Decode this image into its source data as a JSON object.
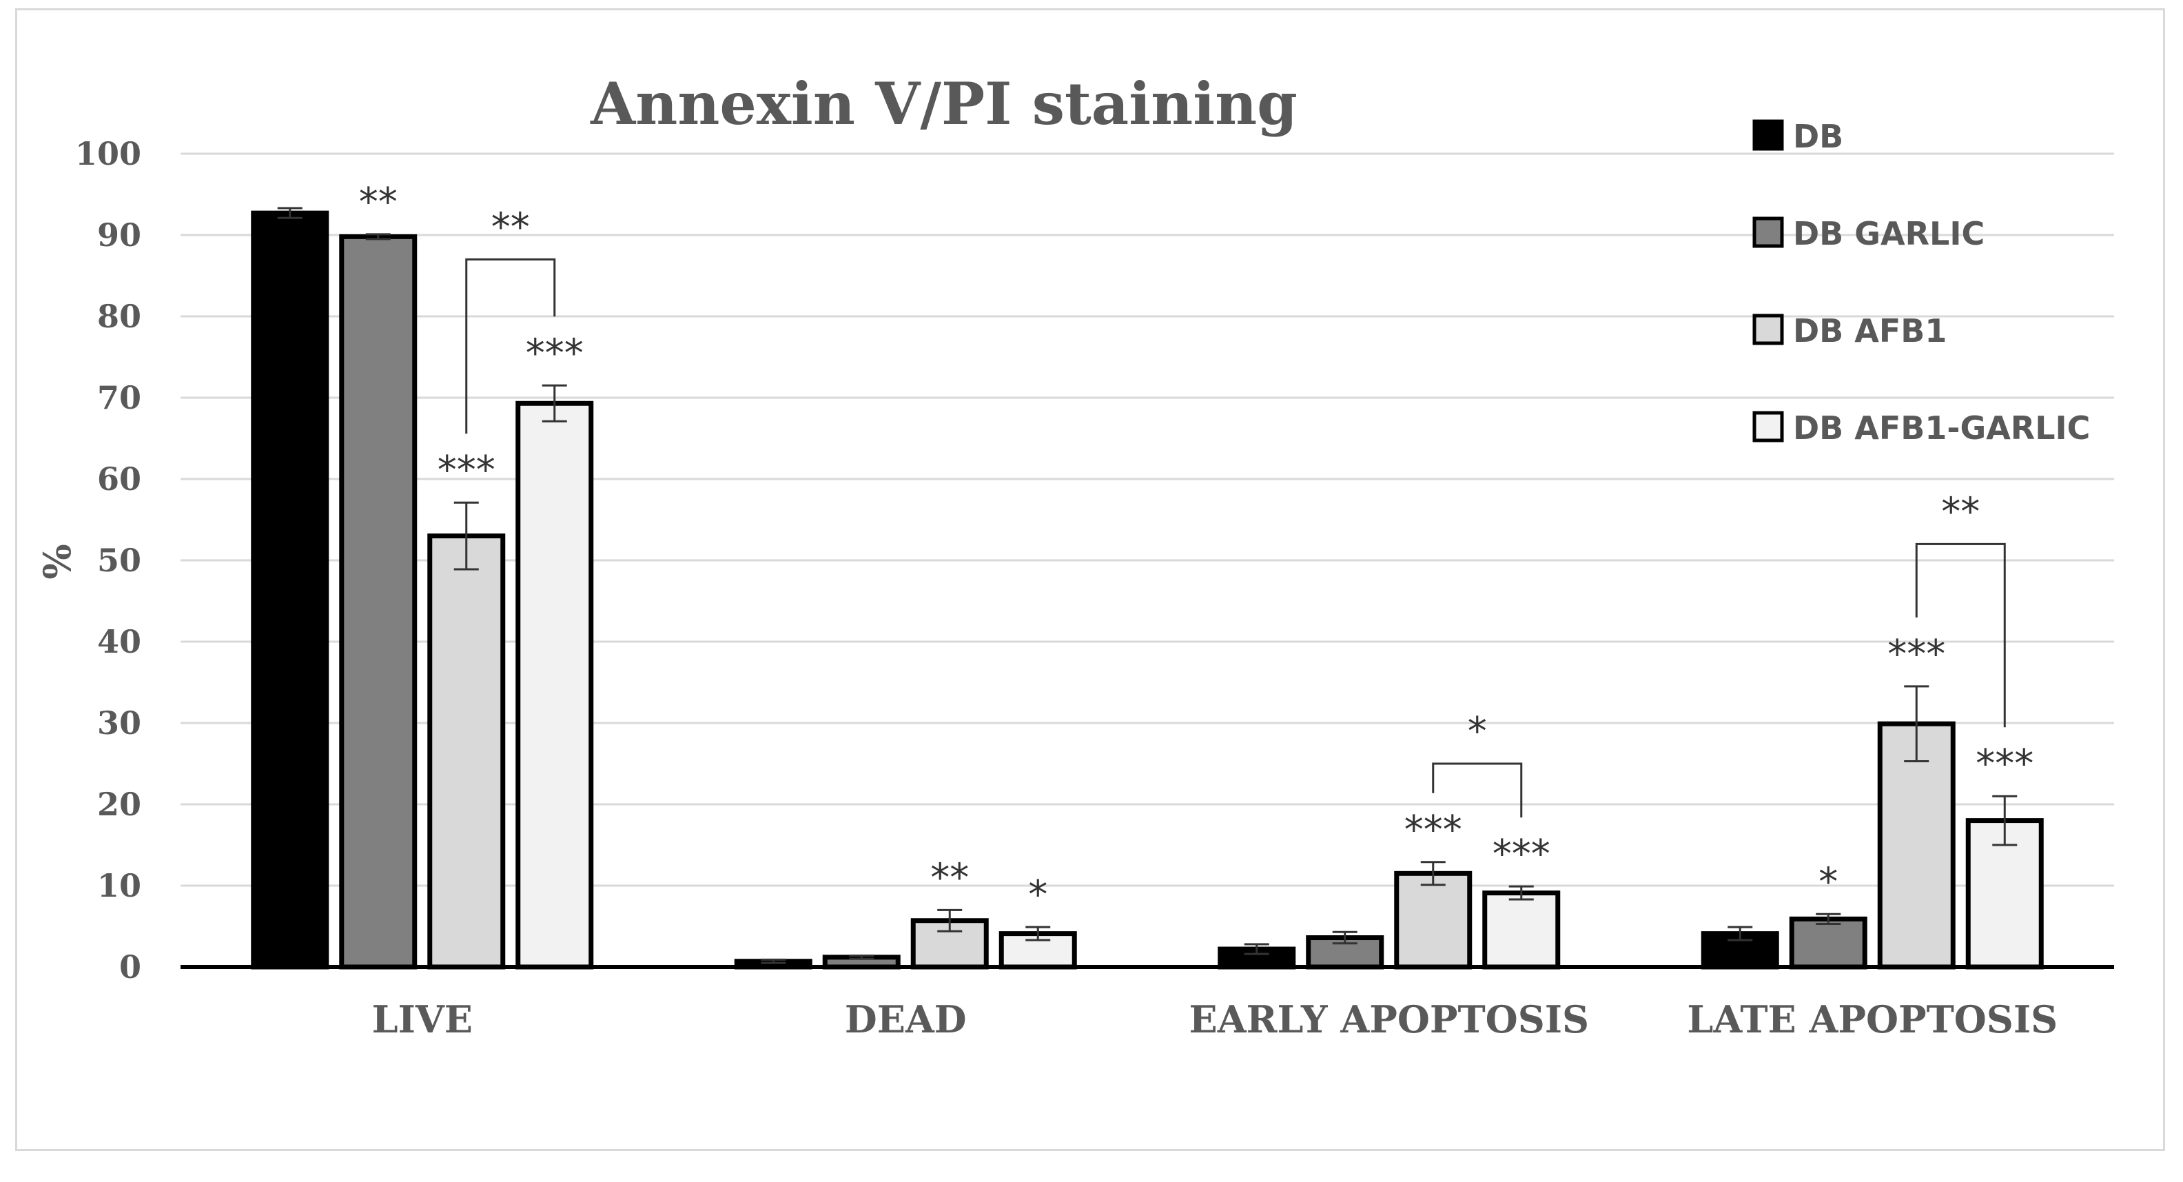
{
  "chart_data": {
    "type": "bar",
    "title": "Annexin V/PI staining",
    "xlabel": "",
    "ylabel": "%",
    "ylim": [
      0,
      100
    ],
    "yticks": [
      "0",
      "10",
      "20",
      "30",
      "40",
      "50",
      "60",
      "70",
      "80",
      "90",
      "100"
    ],
    "grid": true,
    "legend_position": "top-right",
    "categories": [
      "LIVE",
      "DEAD",
      "EARLY APOPTOSIS",
      "LATE APOPTOSIS"
    ],
    "series": [
      {
        "name": "DB",
        "color": "#000000",
        "values": [
          92.7,
          0.7,
          2.2,
          4.1
        ],
        "errors": [
          0.6,
          0.2,
          0.6,
          0.8
        ],
        "significance": [
          "",
          "",
          "",
          ""
        ]
      },
      {
        "name": "DB GARLIC",
        "color": "#808080",
        "values": [
          89.8,
          1.2,
          3.6,
          5.9
        ],
        "errors": [
          0.3,
          0.2,
          0.7,
          0.6
        ],
        "significance": [
          "**",
          "",
          "",
          "*"
        ]
      },
      {
        "name": "DB AFB1",
        "color": "#d9d9d9",
        "values": [
          53.0,
          5.7,
          11.5,
          29.9
        ],
        "errors": [
          4.1,
          1.3,
          1.4,
          4.6
        ],
        "significance": [
          "***",
          "**",
          "***",
          "***"
        ]
      },
      {
        "name": "DB AFB1-GARLIC",
        "color": "#f2f2f2",
        "values": [
          69.3,
          4.1,
          9.1,
          18.0
        ],
        "errors": [
          2.2,
          0.8,
          0.8,
          3.0
        ],
        "significance": [
          "***",
          "*",
          "***",
          "***"
        ]
      }
    ],
    "comparisons": [
      {
        "category": "LIVE",
        "between": [
          "DB AFB1",
          "DB AFB1-GARLIC"
        ],
        "label": "**",
        "bracket_y": 87
      },
      {
        "category": "EARLY APOPTOSIS",
        "between": [
          "DB AFB1",
          "DB AFB1-GARLIC"
        ],
        "label": "*",
        "bracket_y": 25
      },
      {
        "category": "LATE APOPTOSIS",
        "between": [
          "DB AFB1",
          "DB AFB1-GARLIC"
        ],
        "label": "**",
        "bracket_y": 52
      }
    ]
  }
}
